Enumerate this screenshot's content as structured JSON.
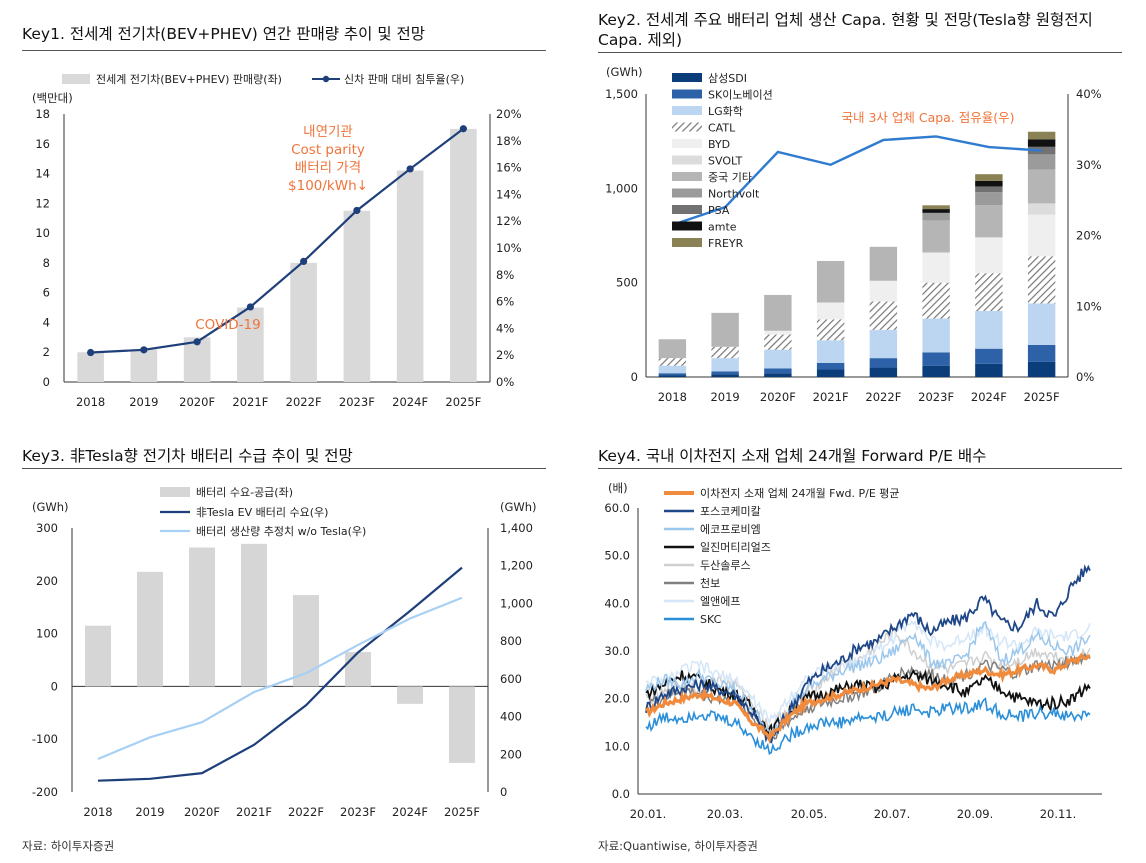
{
  "key1": {
    "title": "Key1. 전세계 전기차(BEV+PHEV) 연간 판매량 추이 및 전망",
    "chart_data": {
      "type": "bar+line",
      "categories": [
        "2018",
        "2019",
        "2020F",
        "2021F",
        "2022F",
        "2023F",
        "2024F",
        "2025F"
      ],
      "series": [
        {
          "name": "전세계 전기차(BEV+PHEV) 판매량(좌)",
          "values": [
            2.0,
            2.2,
            3.0,
            5.0,
            8.0,
            11.5,
            14.2,
            17.0
          ]
        },
        {
          "name": "신차 판매 대비 침투율(우)",
          "values": [
            2.2,
            2.4,
            3.0,
            5.6,
            9.0,
            12.8,
            15.9,
            18.9
          ]
        }
      ],
      "ylabel": "(백만대)",
      "ylim_left": [
        0,
        18
      ],
      "yticks_left": [
        "0",
        "2",
        "4",
        "6",
        "8",
        "10",
        "12",
        "14",
        "16",
        "18"
      ],
      "ylim_right": [
        0,
        20
      ],
      "yticks_right": [
        "0%",
        "2%",
        "4%",
        "6%",
        "8%",
        "10%",
        "12%",
        "14%",
        "16%",
        "18%",
        "20%"
      ],
      "annotations": [
        "COVID-19",
        "내연기관",
        "Cost parity",
        "배터리 가격",
        "$100/kWh↓"
      ],
      "colors": {
        "bar": "#d9d9d9",
        "line": "#1f3f7a",
        "note": "#f0743a"
      }
    }
  },
  "key2": {
    "title_line1": "Key2. 전세계 주요 배터리 업체 생산 Capa. 현황 및 전망(Tesla향 원형전지",
    "title_line2": "Capa. 제외)",
    "chart_data": {
      "type": "stacked-bar+line",
      "categories": [
        "2018",
        "2019",
        "2020F",
        "2021F",
        "2022F",
        "2023F",
        "2024F",
        "2025F"
      ],
      "series": [
        {
          "name": "삼성SDI",
          "color": "#0a3d7a",
          "values": [
            10,
            15,
            20,
            40,
            50,
            60,
            70,
            80
          ]
        },
        {
          "name": "SK이노베이션",
          "color": "#2e62a8",
          "values": [
            10,
            15,
            25,
            35,
            50,
            70,
            80,
            90
          ]
        },
        {
          "name": "LG화학",
          "color": "#bcd5f0",
          "values": [
            40,
            70,
            100,
            120,
            150,
            180,
            200,
            220
          ]
        },
        {
          "name": "CATL",
          "color": "#888888",
          "pattern": "hatch",
          "values": [
            40,
            60,
            80,
            110,
            150,
            190,
            200,
            250
          ]
        },
        {
          "name": "BYD",
          "color": "#efefef",
          "values": [
            0,
            0,
            20,
            90,
            110,
            160,
            190,
            220
          ]
        },
        {
          "name": "SVOLT",
          "color": "#dcdcdc",
          "values": [
            0,
            0,
            0,
            0,
            0,
            0,
            0,
            60
          ]
        },
        {
          "name": "중국 기타",
          "color": "#b5b5b5",
          "values": [
            100,
            180,
            190,
            220,
            180,
            170,
            170,
            180
          ]
        },
        {
          "name": "Northvolt",
          "color": "#9b9b9b",
          "values": [
            0,
            0,
            0,
            0,
            0,
            40,
            70,
            80
          ]
        },
        {
          "name": "PSA",
          "color": "#727272",
          "values": [
            0,
            0,
            0,
            0,
            0,
            0,
            30,
            40
          ]
        },
        {
          "name": "amte",
          "color": "#111111",
          "values": [
            0,
            0,
            0,
            0,
            0,
            20,
            30,
            40
          ]
        },
        {
          "name": "FREYR",
          "color": "#8a8254",
          "values": [
            0,
            0,
            0,
            0,
            0,
            20,
            35,
            40
          ]
        }
      ],
      "line": {
        "name": "국내 3사 업체 Capa. 점유율(우)",
        "color": "#2f7bd0",
        "values": [
          21.5,
          24,
          31.8,
          30,
          33.5,
          34,
          32.5,
          32
        ]
      },
      "ylabel": "(GWh)",
      "ylim_left": [
        0,
        1500
      ],
      "yticks_left": [
        "0",
        "500",
        "1,000",
        "1,500"
      ],
      "ylim_right": [
        0,
        40
      ],
      "yticks_right": [
        "0%",
        "10%",
        "20%",
        "30%",
        "40%"
      ],
      "annotations": [
        "국내 3사 업체 Capa. 점유율(우)"
      ]
    }
  },
  "key3": {
    "title": "Key3. 非Tesla향 전기차 배터리 수급 추이 및 전망",
    "chart_data": {
      "type": "bar+line",
      "categories": [
        "2018",
        "2019",
        "2020F",
        "2021F",
        "2022F",
        "2023F",
        "2024F",
        "2025F"
      ],
      "series": [
        {
          "name": "배터리 수요-공급(좌)",
          "color": "#d6d6d6",
          "values": [
            115,
            217,
            263,
            270,
            173,
            65,
            -33,
            -145
          ]
        },
        {
          "name": "非Tesla EV 배터리 수요(우)",
          "color": "#1f3f7a",
          "values": [
            60,
            70,
            100,
            250,
            460,
            740,
            960,
            1190
          ]
        },
        {
          "name": "배터리 생산량 추정치 w/o Tesla(우)",
          "color": "#a8d0f5",
          "values": [
            175,
            290,
            370,
            530,
            630,
            780,
            920,
            1030
          ]
        }
      ],
      "ylabel_left": "(GWh)",
      "ylabel_right": "(GWh)",
      "ylim_left": [
        -200,
        300
      ],
      "yticks_left": [
        "-200",
        "-100",
        "0",
        "100",
        "200",
        "300"
      ],
      "ylim_right": [
        0,
        1400
      ],
      "yticks_right": [
        "0",
        "200",
        "400",
        "600",
        "800",
        "1,000",
        "1,200",
        "1,400"
      ]
    }
  },
  "key4": {
    "title": "Key4. 국내 이차전지 소재 업체 24개월 Forward P/E 배수",
    "chart_data": {
      "type": "line",
      "ylabel": "(배)",
      "ylim": [
        0,
        60
      ],
      "yticks": [
        "0.0",
        "10.0",
        "20.0",
        "30.0",
        "40.0",
        "50.0",
        "60.0"
      ],
      "xticks": [
        "20.01.",
        "20.03.",
        "20.05.",
        "20.07.",
        "20.09.",
        "20.11."
      ],
      "series": [
        {
          "name": "이차전지 소재 업체 24개월 Fwd. P/E 평균",
          "color": "#f08a3c",
          "width": 3.2,
          "values": [
            17,
            19,
            20,
            21,
            20,
            19,
            15,
            12,
            16,
            19,
            20,
            21,
            22,
            23,
            24,
            23,
            22,
            24,
            25,
            26,
            25,
            26,
            27,
            26,
            28,
            29
          ]
        },
        {
          "name": "포스코케미칼",
          "color": "#1f4788",
          "width": 1.8,
          "values": [
            18,
            21,
            22,
            23,
            22,
            21,
            17,
            11,
            17,
            23,
            26,
            28,
            31,
            32,
            35,
            38,
            34,
            36,
            37,
            41,
            36,
            35,
            40,
            37,
            44,
            48
          ]
        },
        {
          "name": "에코프로비엠",
          "color": "#9cc7ec",
          "width": 1.5,
          "values": [
            22,
            24,
            23,
            25,
            23,
            22,
            18,
            12,
            18,
            22,
            24,
            26,
            27,
            28,
            30,
            34,
            28,
            27,
            29,
            36,
            28,
            30,
            33,
            31,
            30,
            33
          ]
        },
        {
          "name": "일진머티리얼즈",
          "color": "#111111",
          "width": 1.8,
          "values": [
            21,
            23,
            25,
            24,
            22,
            21,
            18,
            13,
            17,
            20,
            21,
            22,
            23,
            22,
            24,
            25,
            24,
            23,
            21,
            24,
            22,
            20,
            19,
            19,
            20,
            23
          ]
        },
        {
          "name": "두산솔루스",
          "color": "#cfcfcf",
          "width": 1.5,
          "values": [
            20,
            21,
            23,
            22,
            24,
            23,
            19,
            14,
            18,
            21,
            24,
            27,
            28,
            31,
            34,
            30,
            27,
            26,
            27,
            29,
            27,
            28,
            30,
            29,
            28,
            30
          ]
        },
        {
          "name": "천보",
          "color": "#808080",
          "width": 1.5,
          "values": [
            19,
            20,
            22,
            21,
            20,
            20,
            16,
            12,
            15,
            18,
            19,
            20,
            21,
            22,
            25,
            26,
            25,
            24,
            25,
            27,
            26,
            25,
            27,
            27,
            28,
            29
          ]
        },
        {
          "name": "엘앤에프",
          "color": "#d4e6f7",
          "width": 1.5,
          "values": [
            24,
            23,
            26,
            27,
            25,
            24,
            20,
            15,
            20,
            24,
            26,
            27,
            28,
            30,
            33,
            37,
            32,
            31,
            33,
            35,
            32,
            31,
            34,
            33,
            33,
            35
          ]
        },
        {
          "name": "SKC",
          "color": "#2a8fd8",
          "width": 1.6,
          "values": [
            14,
            16,
            16,
            17,
            16,
            15,
            12,
            9,
            12,
            14,
            15,
            15,
            16,
            16,
            17,
            18,
            17,
            18,
            18,
            19,
            17,
            16,
            17,
            17,
            16,
            17
          ]
        }
      ]
    }
  },
  "sources": {
    "left": "자료: 하이투자증권",
    "right": "자료:Quantiwise, 하이투자증권"
  }
}
